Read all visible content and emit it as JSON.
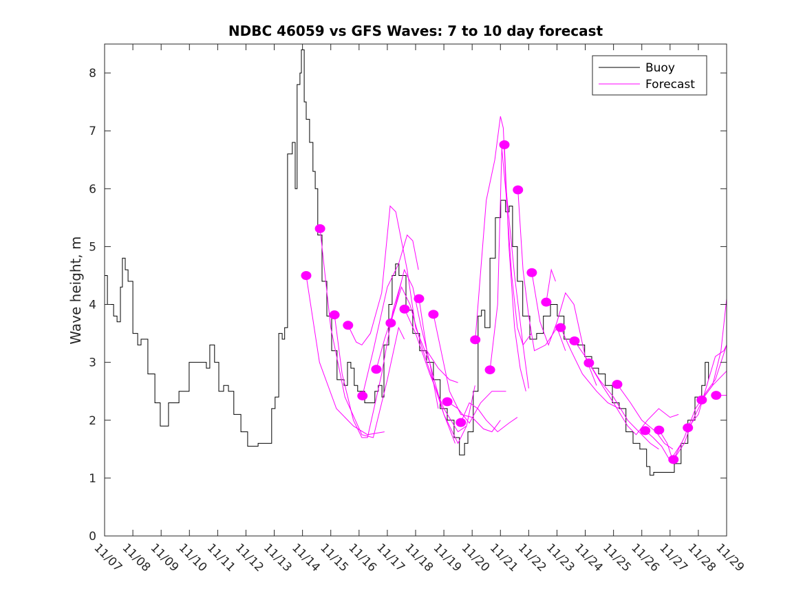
{
  "chart_data": {
    "type": "line",
    "title": "NDBC 46059 vs GFS Waves: 7 to 10 day forecast",
    "xlabel": "",
    "ylabel": "Wave height, m",
    "x_unit": "days since 11/07",
    "xlim": [
      0,
      22
    ],
    "ylim": [
      0,
      8.5
    ],
    "x_tick_labels": [
      "11/07",
      "11/08",
      "11/09",
      "11/10",
      "11/11",
      "11/12",
      "11/13",
      "11/14",
      "11/15",
      "11/16",
      "11/17",
      "11/18",
      "11/19",
      "11/20",
      "11/21",
      "11/22",
      "11/23",
      "11/24",
      "11/25",
      "11/26",
      "11/27",
      "11/28",
      "11/29"
    ],
    "y_ticks": [
      0,
      1,
      2,
      3,
      4,
      5,
      6,
      7,
      8
    ],
    "grid": false,
    "legend": {
      "position": "top-right",
      "entries": [
        "Buoy",
        "Forecast"
      ]
    },
    "colors": {
      "buoy": "#000000",
      "forecast": "#ff00ff"
    },
    "buoy": [
      [
        0,
        4.5
      ],
      [
        0.1,
        4.0
      ],
      [
        0.19,
        4.0
      ],
      [
        0.32,
        3.8
      ],
      [
        0.44,
        3.7
      ],
      [
        0.56,
        4.3
      ],
      [
        0.63,
        4.8
      ],
      [
        0.73,
        4.6
      ],
      [
        0.83,
        4.4
      ],
      [
        1.0,
        3.5
      ],
      [
        1.17,
        3.3
      ],
      [
        1.29,
        3.4
      ],
      [
        1.53,
        2.8
      ],
      [
        1.78,
        2.3
      ],
      [
        1.97,
        1.9
      ],
      [
        2.26,
        2.3
      ],
      [
        2.63,
        2.5
      ],
      [
        2.99,
        3.0
      ],
      [
        3.36,
        3.0
      ],
      [
        3.6,
        2.9
      ],
      [
        3.72,
        3.3
      ],
      [
        3.89,
        3.0
      ],
      [
        4.04,
        2.5
      ],
      [
        4.21,
        2.6
      ],
      [
        4.38,
        2.5
      ],
      [
        4.57,
        2.1
      ],
      [
        4.82,
        1.8
      ],
      [
        5.06,
        1.55
      ],
      [
        5.43,
        1.6
      ],
      [
        5.67,
        1.6
      ],
      [
        5.91,
        2.2
      ],
      [
        6.03,
        2.4
      ],
      [
        6.16,
        3.5
      ],
      [
        6.28,
        3.4
      ],
      [
        6.37,
        3.6
      ],
      [
        6.47,
        6.6
      ],
      [
        6.64,
        6.8
      ],
      [
        6.74,
        6.0
      ],
      [
        6.81,
        7.8
      ],
      [
        6.91,
        8.0
      ],
      [
        6.96,
        8.4
      ],
      [
        7.06,
        7.5
      ],
      [
        7.13,
        7.2
      ],
      [
        7.25,
        6.8
      ],
      [
        7.37,
        6.3
      ],
      [
        7.45,
        6.0
      ],
      [
        7.54,
        5.2
      ],
      [
        7.69,
        4.4
      ],
      [
        7.86,
        3.8
      ],
      [
        8.03,
        3.2
      ],
      [
        8.22,
        2.7
      ],
      [
        8.47,
        2.6
      ],
      [
        8.59,
        3.0
      ],
      [
        8.71,
        2.9
      ],
      [
        8.83,
        2.6
      ],
      [
        8.95,
        2.5
      ],
      [
        9.2,
        2.3
      ],
      [
        9.44,
        2.3
      ],
      [
        9.56,
        2.5
      ],
      [
        9.68,
        2.6
      ],
      [
        9.81,
        2.4
      ],
      [
        9.88,
        3.3
      ],
      [
        10.05,
        4.0
      ],
      [
        10.17,
        4.5
      ],
      [
        10.29,
        4.7
      ],
      [
        10.41,
        4.5
      ],
      [
        10.66,
        3.9
      ],
      [
        10.9,
        3.5
      ],
      [
        11.14,
        3.2
      ],
      [
        11.39,
        3.0
      ],
      [
        11.63,
        2.7
      ],
      [
        11.87,
        2.2
      ],
      [
        12.12,
        2.0
      ],
      [
        12.36,
        1.7
      ],
      [
        12.55,
        1.4
      ],
      [
        12.73,
        1.6
      ],
      [
        12.85,
        1.8
      ],
      [
        13.04,
        2.5
      ],
      [
        13.21,
        3.8
      ],
      [
        13.33,
        3.9
      ],
      [
        13.45,
        3.6
      ],
      [
        13.63,
        4.8
      ],
      [
        13.82,
        5.5
      ],
      [
        14.01,
        5.8
      ],
      [
        14.18,
        5.6
      ],
      [
        14.31,
        5.7
      ],
      [
        14.43,
        5.0
      ],
      [
        14.6,
        4.4
      ],
      [
        14.79,
        3.8
      ],
      [
        15.04,
        3.4
      ],
      [
        15.28,
        3.5
      ],
      [
        15.52,
        3.8
      ],
      [
        15.77,
        4.0
      ],
      [
        16.01,
        3.8
      ],
      [
        16.25,
        3.4
      ],
      [
        16.5,
        3.4
      ],
      [
        16.74,
        3.3
      ],
      [
        16.98,
        3.1
      ],
      [
        17.23,
        2.9
      ],
      [
        17.47,
        2.8
      ],
      [
        17.71,
        2.6
      ],
      [
        17.96,
        2.3
      ],
      [
        18.2,
        2.2
      ],
      [
        18.44,
        1.8
      ],
      [
        18.69,
        1.6
      ],
      [
        18.93,
        1.5
      ],
      [
        19.17,
        1.2
      ],
      [
        19.29,
        1.05
      ],
      [
        19.42,
        1.1
      ],
      [
        19.66,
        1.1
      ],
      [
        19.9,
        1.1
      ],
      [
        20.15,
        1.25
      ],
      [
        20.39,
        1.6
      ],
      [
        20.63,
        2.0
      ],
      [
        20.88,
        2.4
      ],
      [
        21.12,
        2.6
      ],
      [
        21.24,
        3.0
      ],
      [
        21.36,
        2.7
      ]
    ],
    "forecast_points": [
      [
        7.13,
        4.5
      ],
      [
        7.62,
        5.31
      ],
      [
        8.13,
        3.82
      ],
      [
        8.61,
        3.64
      ],
      [
        9.12,
        2.42
      ],
      [
        9.61,
        2.88
      ],
      [
        10.12,
        3.68
      ],
      [
        10.61,
        3.92
      ],
      [
        11.12,
        4.1
      ],
      [
        11.63,
        3.83
      ],
      [
        12.12,
        2.32
      ],
      [
        12.6,
        1.96
      ],
      [
        13.11,
        3.39
      ],
      [
        13.63,
        2.87
      ],
      [
        14.14,
        6.76
      ],
      [
        14.62,
        5.98
      ],
      [
        15.11,
        4.55
      ],
      [
        15.62,
        4.04
      ],
      [
        16.13,
        3.6
      ],
      [
        16.62,
        3.37
      ],
      [
        17.13,
        2.99
      ],
      [
        18.13,
        2.62
      ],
      [
        19.12,
        1.82
      ],
      [
        19.61,
        1.83
      ],
      [
        20.12,
        1.32
      ],
      [
        20.63,
        1.87
      ],
      [
        21.12,
        2.35
      ],
      [
        21.63,
        2.43
      ]
    ],
    "forecast_lines": [
      [
        [
          7.13,
          4.5
        ],
        [
          7.6,
          3.0
        ],
        [
          8.2,
          2.2
        ],
        [
          8.8,
          1.9
        ],
        [
          9.3,
          1.75
        ],
        [
          9.9,
          1.8
        ]
      ],
      [
        [
          7.62,
          5.31
        ],
        [
          8.0,
          3.6
        ],
        [
          8.5,
          2.4
        ],
        [
          9.1,
          1.75
        ],
        [
          9.5,
          1.7
        ],
        [
          10.0,
          2.7
        ],
        [
          10.4,
          3.6
        ],
        [
          10.6,
          3.4
        ]
      ],
      [
        [
          8.13,
          3.82
        ],
        [
          8.4,
          2.8
        ],
        [
          8.8,
          2.0
        ],
        [
          9.1,
          1.7
        ],
        [
          9.3,
          1.7
        ],
        [
          9.8,
          2.8
        ],
        [
          10.2,
          3.9
        ],
        [
          10.5,
          4.4
        ]
      ],
      [
        [
          8.61,
          3.64
        ],
        [
          8.9,
          3.35
        ],
        [
          9.1,
          3.3
        ],
        [
          9.4,
          3.5
        ],
        [
          9.8,
          4.2
        ],
        [
          10.1,
          5.7
        ],
        [
          10.3,
          5.6
        ],
        [
          10.7,
          4.6
        ],
        [
          11.0,
          3.6
        ],
        [
          11.5,
          3.0
        ],
        [
          11.8,
          2.2
        ]
      ],
      [
        [
          9.12,
          2.42
        ],
        [
          9.5,
          3.2
        ],
        [
          10.0,
          4.3
        ],
        [
          10.4,
          4.7
        ],
        [
          10.7,
          5.2
        ],
        [
          10.9,
          5.1
        ],
        [
          11.1,
          4.6
        ]
      ],
      [
        [
          9.61,
          2.88
        ],
        [
          9.9,
          3.4
        ],
        [
          10.3,
          4.0
        ],
        [
          10.6,
          4.6
        ],
        [
          10.9,
          4.3
        ],
        [
          11.2,
          3.6
        ],
        [
          11.6,
          2.8
        ],
        [
          12.0,
          2.1
        ],
        [
          12.4,
          1.6
        ]
      ],
      [
        [
          10.12,
          3.68
        ],
        [
          10.5,
          4.3
        ],
        [
          10.8,
          4.0
        ],
        [
          11.2,
          3.3
        ],
        [
          11.6,
          2.7
        ],
        [
          12.0,
          2.1
        ],
        [
          12.5,
          1.6
        ],
        [
          12.8,
          1.9
        ]
      ],
      [
        [
          10.61,
          3.92
        ],
        [
          11.0,
          3.5
        ],
        [
          11.5,
          2.8
        ],
        [
          12.0,
          2.2
        ],
        [
          12.5,
          1.8
        ],
        [
          12.8,
          1.9
        ],
        [
          13.1,
          2.6
        ]
      ],
      [
        [
          11.12,
          4.1
        ],
        [
          11.4,
          3.2
        ],
        [
          11.8,
          2.9
        ],
        [
          12.2,
          2.7
        ],
        [
          12.5,
          2.65
        ]
      ],
      [
        [
          11.63,
          3.83
        ],
        [
          11.9,
          3.2
        ],
        [
          12.2,
          2.5
        ],
        [
          12.6,
          2.1
        ],
        [
          13.0,
          2.05
        ],
        [
          13.4,
          1.85
        ],
        [
          13.7,
          1.8
        ],
        [
          14.0,
          2.0
        ]
      ],
      [
        [
          12.12,
          2.32
        ],
        [
          12.5,
          2.2
        ],
        [
          12.9,
          1.95
        ],
        [
          13.3,
          2.3
        ],
        [
          13.7,
          2.5
        ],
        [
          14.2,
          2.5
        ]
      ],
      [
        [
          12.6,
          1.96
        ],
        [
          12.9,
          2.3
        ],
        [
          13.2,
          2.2
        ],
        [
          13.5,
          2.0
        ],
        [
          13.9,
          1.8
        ],
        [
          14.3,
          1.95
        ],
        [
          14.6,
          2.05
        ]
      ],
      [
        [
          13.11,
          3.39
        ],
        [
          13.5,
          5.8
        ],
        [
          13.8,
          6.5
        ],
        [
          14.0,
          7.25
        ],
        [
          14.1,
          7.05
        ],
        [
          14.2,
          6.0
        ],
        [
          14.5,
          4.5
        ],
        [
          14.8,
          3.3
        ],
        [
          15.0,
          2.55
        ]
      ],
      [
        [
          13.63,
          2.87
        ],
        [
          13.9,
          4.0
        ],
        [
          14.05,
          6.7
        ],
        [
          14.2,
          5.9
        ],
        [
          14.4,
          4.5
        ],
        [
          14.6,
          3.6
        ],
        [
          14.8,
          3.3
        ],
        [
          15.1,
          3.5
        ]
      ],
      [
        [
          14.14,
          6.76
        ],
        [
          14.3,
          5.0
        ],
        [
          14.5,
          3.6
        ],
        [
          14.7,
          2.9
        ],
        [
          14.9,
          2.5
        ]
      ],
      [
        [
          14.62,
          5.98
        ],
        [
          14.8,
          4.6
        ],
        [
          15.0,
          3.8
        ],
        [
          15.2,
          3.2
        ],
        [
          15.6,
          3.3
        ],
        [
          16.0,
          3.6
        ],
        [
          16.3,
          3.2
        ]
      ],
      [
        [
          15.11,
          4.55
        ],
        [
          15.4,
          3.7
        ],
        [
          15.7,
          3.3
        ],
        [
          16.0,
          3.7
        ],
        [
          16.3,
          4.2
        ],
        [
          16.6,
          4.0
        ],
        [
          17.0,
          3.1
        ],
        [
          17.4,
          2.6
        ]
      ],
      [
        [
          15.62,
          4.04
        ],
        [
          15.8,
          4.6
        ],
        [
          15.95,
          4.4
        ]
      ],
      [
        [
          16.13,
          3.6
        ],
        [
          16.5,
          3.2
        ],
        [
          16.9,
          2.8
        ],
        [
          17.4,
          2.5
        ],
        [
          17.8,
          2.3
        ],
        [
          18.2,
          2.2
        ]
      ],
      [
        [
          16.62,
          3.37
        ],
        [
          17.0,
          3.1
        ],
        [
          17.5,
          2.7
        ],
        [
          18.0,
          2.4
        ],
        [
          18.5,
          2.0
        ],
        [
          18.9,
          1.8
        ],
        [
          19.3,
          1.6
        ],
        [
          19.6,
          1.5
        ]
      ],
      [
        [
          17.13,
          2.99
        ],
        [
          17.6,
          2.6
        ],
        [
          18.0,
          2.3
        ],
        [
          18.5,
          1.9
        ],
        [
          18.8,
          1.75
        ],
        [
          19.2,
          2.0
        ],
        [
          19.6,
          2.2
        ],
        [
          20.0,
          2.05
        ],
        [
          20.3,
          2.1
        ]
      ],
      [
        [
          18.13,
          2.62
        ],
        [
          18.6,
          2.3
        ],
        [
          19.0,
          2.0
        ],
        [
          19.5,
          1.8
        ],
        [
          19.8,
          1.6
        ],
        [
          20.1,
          1.5
        ]
      ],
      [
        [
          19.12,
          1.82
        ],
        [
          19.4,
          1.7
        ],
        [
          19.7,
          1.55
        ],
        [
          20.0,
          1.3
        ],
        [
          20.4,
          1.6
        ]
      ],
      [
        [
          19.61,
          1.83
        ],
        [
          19.9,
          1.6
        ],
        [
          20.1,
          1.3
        ],
        [
          20.5,
          1.6
        ],
        [
          20.8,
          2.0
        ],
        [
          21.2,
          2.4
        ],
        [
          21.5,
          2.6
        ],
        [
          22.0,
          2.85
        ]
      ],
      [
        [
          20.12,
          1.32
        ],
        [
          20.5,
          1.7
        ],
        [
          20.9,
          2.2
        ],
        [
          21.3,
          2.5
        ],
        [
          21.6,
          2.7
        ],
        [
          21.8,
          3.0
        ],
        [
          22.0,
          3.3
        ]
      ],
      [
        [
          20.63,
          1.87
        ],
        [
          21.0,
          2.1
        ],
        [
          21.3,
          2.6
        ],
        [
          21.6,
          3.1
        ],
        [
          21.9,
          3.2
        ],
        [
          22.0,
          3.3
        ]
      ],
      [
        [
          21.12,
          2.35
        ],
        [
          21.5,
          2.6
        ],
        [
          21.8,
          3.2
        ],
        [
          22.0,
          4.1
        ]
      ],
      [
        [
          21.63,
          2.43
        ],
        [
          22.0,
          2.43
        ]
      ]
    ]
  }
}
